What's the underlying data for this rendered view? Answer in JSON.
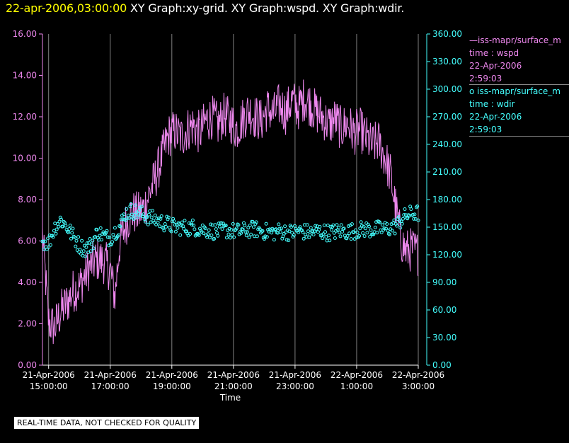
{
  "header": {
    "date": "22-apr-2006,03:00:00",
    "rest": "  XY Graph:xy-grid.  XY Graph:wspd.  XY Graph:wdir."
  },
  "legend": {
    "wspd": {
      "source": "—iss-mapr/surface_m",
      "line2": "time : wspd",
      "line3": "22-Apr-2006",
      "line4": "2:59:03"
    },
    "wdir": {
      "source": "o  iss-mapr/surface_m",
      "line2": "time : wdir",
      "line3": "22-Apr-2006",
      "line4": "2:59:03"
    }
  },
  "disclaimer": "REAL-TIME DATA, NOT CHECKED FOR QUALITY",
  "chart_data": {
    "type": "line",
    "xlabel": "Time",
    "x_unit": "hours",
    "xlim": [
      14.8,
      27.0
    ],
    "x_ticks": [
      {
        "x": 15,
        "line1": "21-Apr-2006",
        "line2": "15:00:00"
      },
      {
        "x": 17,
        "line1": "21-Apr-2006",
        "line2": "17:00:00"
      },
      {
        "x": 19,
        "line1": "21-Apr-2006",
        "line2": "19:00:00"
      },
      {
        "x": 21,
        "line1": "21-Apr-2006",
        "line2": "21:00:00"
      },
      {
        "x": 23,
        "line1": "21-Apr-2006",
        "line2": "23:00:00"
      },
      {
        "x": 25,
        "line1": "22-Apr-2006",
        "line2": "1:00:00"
      },
      {
        "x": 27,
        "line1": "22-Apr-2006",
        "line2": "3:00:00"
      }
    ],
    "y_left": {
      "range": [
        0,
        16
      ],
      "ticks": [
        "0.00",
        "2.00",
        "4.00",
        "6.00",
        "8.00",
        "10.00",
        "12.00",
        "14.00",
        "16.00"
      ],
      "color": "#ee88ee"
    },
    "y_right": {
      "range": [
        0,
        360
      ],
      "ticks": [
        "0.00",
        "30.00",
        "60.00",
        "90.00",
        "120.00",
        "150.00",
        "180.00",
        "210.00",
        "240.00",
        "270.00",
        "300.00",
        "330.00",
        "360.00"
      ],
      "color": "#44ffff"
    },
    "grid": "vertical",
    "series": [
      {
        "name": "time : wspd",
        "style": "line",
        "axis": "left",
        "color": "#ee88ee",
        "points": [
          [
            14.8,
            6.3
          ],
          [
            15.0,
            2.1
          ],
          [
            15.2,
            1.8
          ],
          [
            15.4,
            2.6
          ],
          [
            15.6,
            3.0
          ],
          [
            15.8,
            3.6
          ],
          [
            16.0,
            3.8
          ],
          [
            16.2,
            4.4
          ],
          [
            16.4,
            4.9
          ],
          [
            16.6,
            5.1
          ],
          [
            16.8,
            5.0
          ],
          [
            17.0,
            4.6
          ],
          [
            17.15,
            3.3
          ],
          [
            17.3,
            5.8
          ],
          [
            17.5,
            6.8
          ],
          [
            17.7,
            7.4
          ],
          [
            17.9,
            7.3
          ],
          [
            18.1,
            7.6
          ],
          [
            18.3,
            8.4
          ],
          [
            18.5,
            9.2
          ],
          [
            18.7,
            10.2
          ],
          [
            18.9,
            11.1
          ],
          [
            19.1,
            11.3
          ],
          [
            19.3,
            11.0
          ],
          [
            19.5,
            11.4
          ],
          [
            19.7,
            11.6
          ],
          [
            19.9,
            11.2
          ],
          [
            20.1,
            11.8
          ],
          [
            20.3,
            12.0
          ],
          [
            20.5,
            11.6
          ],
          [
            20.7,
            12.1
          ],
          [
            20.9,
            11.8
          ],
          [
            21.1,
            11.4
          ],
          [
            21.3,
            11.9
          ],
          [
            21.5,
            12.3
          ],
          [
            21.7,
            12.0
          ],
          [
            21.9,
            11.8
          ],
          [
            22.1,
            12.4
          ],
          [
            22.3,
            12.1
          ],
          [
            22.5,
            12.6
          ],
          [
            22.7,
            12.2
          ],
          [
            22.9,
            12.8
          ],
          [
            23.1,
            12.4
          ],
          [
            23.3,
            12.9
          ],
          [
            23.5,
            12.6
          ],
          [
            23.7,
            12.2
          ],
          [
            23.9,
            12.0
          ],
          [
            24.1,
            11.6
          ],
          [
            24.3,
            11.9
          ],
          [
            24.5,
            11.4
          ],
          [
            24.7,
            11.7
          ],
          [
            24.9,
            11.2
          ],
          [
            25.1,
            11.4
          ],
          [
            25.3,
            11.0
          ],
          [
            25.5,
            10.6
          ],
          [
            25.7,
            10.8
          ],
          [
            25.9,
            10.1
          ],
          [
            26.1,
            9.2
          ],
          [
            26.2,
            8.2
          ],
          [
            26.3,
            7.3
          ],
          [
            26.4,
            6.4
          ],
          [
            26.5,
            5.8
          ],
          [
            26.6,
            5.5
          ],
          [
            26.8,
            5.6
          ],
          [
            27.0,
            5.4
          ]
        ],
        "noise_amplitude": 1.1
      },
      {
        "name": "time : wdir",
        "style": "scatter",
        "axis": "right",
        "color": "#44ffff",
        "points": [
          [
            14.8,
            135
          ],
          [
            15.0,
            132
          ],
          [
            15.2,
            150
          ],
          [
            15.4,
            158
          ],
          [
            15.6,
            150
          ],
          [
            15.8,
            140
          ],
          [
            16.0,
            130
          ],
          [
            16.2,
            126
          ],
          [
            16.4,
            132
          ],
          [
            16.6,
            145
          ],
          [
            16.8,
            140
          ],
          [
            17.0,
            138
          ],
          [
            17.15,
            145
          ],
          [
            17.3,
            150
          ],
          [
            17.5,
            165
          ],
          [
            17.7,
            168
          ],
          [
            17.9,
            166
          ],
          [
            18.1,
            163
          ],
          [
            18.3,
            160
          ],
          [
            18.5,
            158
          ],
          [
            18.7,
            155
          ],
          [
            18.9,
            153
          ],
          [
            19.1,
            150
          ],
          [
            19.3,
            150
          ],
          [
            19.5,
            149
          ],
          [
            19.7,
            150
          ],
          [
            19.9,
            148
          ],
          [
            20.1,
            147
          ],
          [
            20.3,
            146
          ],
          [
            20.5,
            145
          ],
          [
            20.7,
            147
          ],
          [
            20.9,
            146
          ],
          [
            21.1,
            145
          ],
          [
            21.3,
            146
          ],
          [
            21.5,
            147
          ],
          [
            21.7,
            148
          ],
          [
            21.9,
            146
          ],
          [
            22.1,
            145
          ],
          [
            22.3,
            144
          ],
          [
            22.5,
            146
          ],
          [
            22.7,
            145
          ],
          [
            22.9,
            144
          ],
          [
            23.1,
            146
          ],
          [
            23.3,
            145
          ],
          [
            23.5,
            144
          ],
          [
            23.7,
            146
          ],
          [
            23.9,
            145
          ],
          [
            24.1,
            144
          ],
          [
            24.3,
            145
          ],
          [
            24.5,
            146
          ],
          [
            24.7,
            145
          ],
          [
            24.9,
            146
          ],
          [
            25.1,
            147
          ],
          [
            25.3,
            148
          ],
          [
            25.5,
            147
          ],
          [
            25.7,
            148
          ],
          [
            25.9,
            148
          ],
          [
            26.1,
            149
          ],
          [
            26.3,
            152
          ],
          [
            26.5,
            160
          ],
          [
            26.7,
            164
          ],
          [
            26.9,
            165
          ],
          [
            27.0,
            165
          ]
        ],
        "noise_amplitude": 9
      }
    ]
  }
}
